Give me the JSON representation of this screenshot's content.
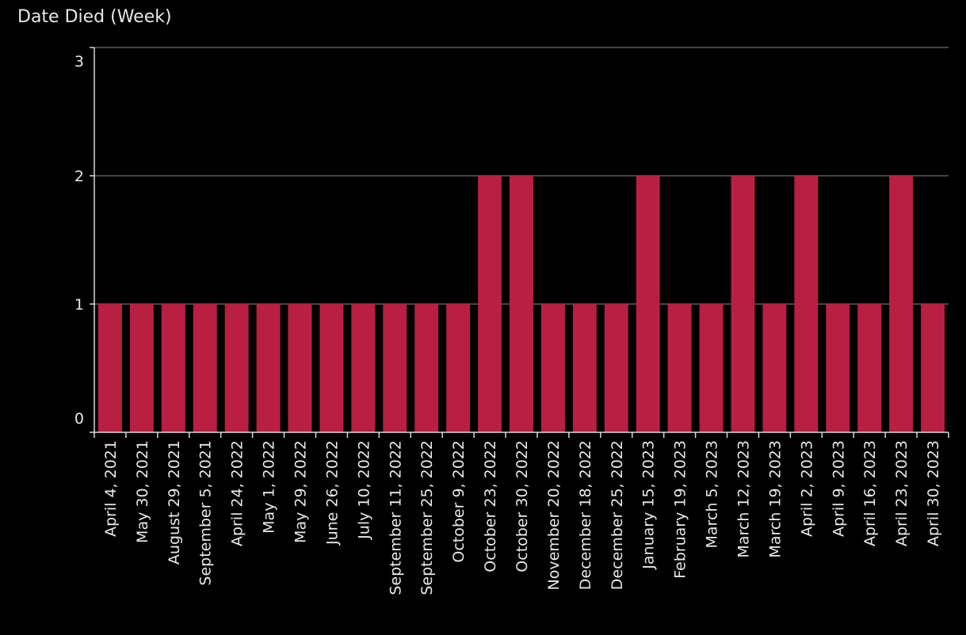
{
  "chart_data": {
    "type": "bar",
    "title": "Date Died (Week)",
    "xlabel": "",
    "ylabel": "",
    "categories": [
      "April 4, 2021",
      "May 30, 2021",
      "August 29, 2021",
      "September 5, 2021",
      "April 24, 2022",
      "May 1, 2022",
      "May 29, 2022",
      "June 26, 2022",
      "July 10, 2022",
      "September 11, 2022",
      "September 25, 2022",
      "October 9, 2022",
      "October 23, 2022",
      "October 30, 2022",
      "November 20, 2022",
      "December 18, 2022",
      "December 25, 2022",
      "January 15, 2023",
      "February 19, 2023",
      "March 5, 2023",
      "March 12, 2023",
      "March 19, 2023",
      "April 2, 2023",
      "April 9, 2023",
      "April 16, 2023",
      "April 23, 2023",
      "April 30, 2023"
    ],
    "values": [
      1,
      1,
      1,
      1,
      1,
      1,
      1,
      1,
      1,
      1,
      1,
      1,
      2,
      2,
      1,
      1,
      1,
      2,
      1,
      1,
      2,
      1,
      2,
      1,
      1,
      2,
      1
    ],
    "ylim": [
      0,
      3
    ],
    "yticks": [
      "0",
      "1",
      "2",
      "3"
    ],
    "grid": true,
    "colors": {
      "background": "#000000",
      "bar": "#b91f42",
      "grid": "#5c5c5c",
      "axis": "#d9d9d9",
      "text": "#e8e8e8"
    }
  }
}
